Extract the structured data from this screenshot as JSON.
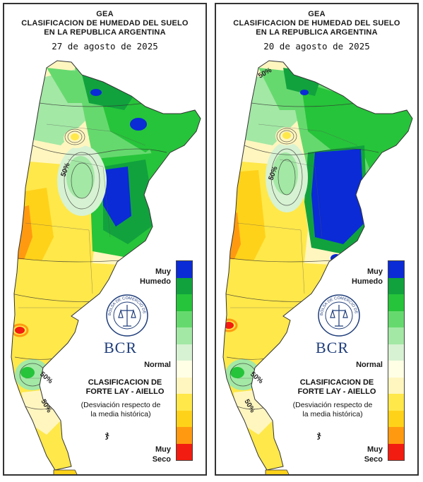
{
  "colors": {
    "scale": [
      "#0a2bd6",
      "#11a23e",
      "#26c43a",
      "#66d96e",
      "#a3e8a5",
      "#d7f2d2",
      "#ffffe6",
      "#fff6bf",
      "#ffe84a",
      "#ffd21a",
      "#ff9a10",
      "#f21c10"
    ],
    "border": "#333333",
    "bcr_blue": "#1f3d7a"
  },
  "panels": [
    {
      "title_line1": "GEA",
      "title_line2": "CLASIFICACION DE HUMEDAD DEL SUELO",
      "title_line3": "EN LA REPUBLICA ARGENTINA",
      "date": "27 de agosto de 2025",
      "contour_labels": [
        "50%",
        "50%",
        "50%"
      ],
      "legend": {
        "muy_humedo_1": "Muy",
        "muy_humedo_2": "Humedo",
        "normal": "Normal",
        "muy_seco_1": "Muy",
        "muy_seco_2": "Seco"
      },
      "logo_text": "BCR",
      "seal_text": "BOLSA DE COMERCIO DE ROSARIO",
      "classification_1": "CLASIFICACION DE",
      "classification_2": "FORTE LAY - AIELLO",
      "deviation_1": "(Desviación respecto de",
      "deviation_2": "la media histórica)"
    },
    {
      "title_line1": "GEA",
      "title_line2": "CLASIFICACION DE HUMEDAD DEL SUELO",
      "title_line3": "EN LA REPUBLICA ARGENTINA",
      "date": "20 de agosto de 2025",
      "contour_labels": [
        "50%",
        "50%",
        "50%",
        "50%"
      ],
      "legend": {
        "muy_humedo_1": "Muy",
        "muy_humedo_2": "Humedo",
        "normal": "Normal",
        "muy_seco_1": "Muy",
        "muy_seco_2": "Seco"
      },
      "logo_text": "BCR",
      "seal_text": "BOLSA DE COMERCIO DE ROSARIO",
      "classification_1": "CLASIFICACION DE",
      "classification_2": "FORTE LAY - AIELLO",
      "deviation_1": "(Desviación respecto de",
      "deviation_2": "la media histórica)"
    }
  ]
}
